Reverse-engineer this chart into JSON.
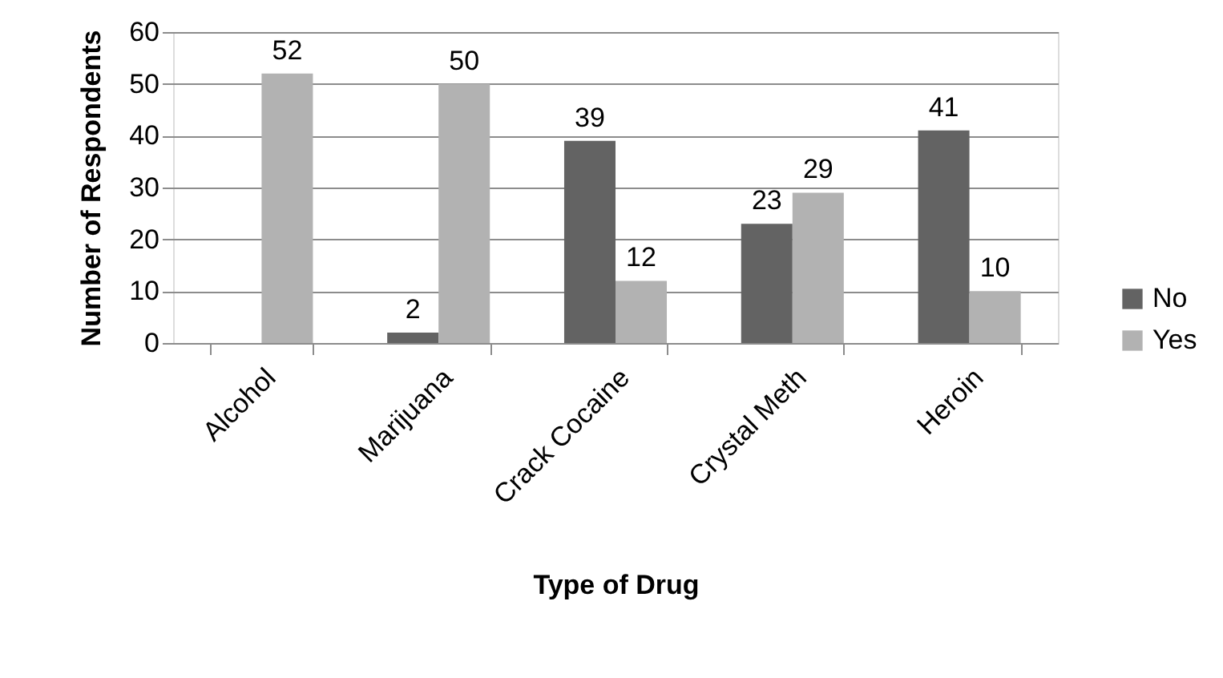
{
  "chart_data": {
    "type": "bar",
    "xlabel": "Type of Drug",
    "ylabel": "Number of Respondents",
    "categories": [
      "Alcohol",
      "Marijuana",
      "Crack Cocaine",
      "Crystal Meth",
      "Heroin"
    ],
    "series": [
      {
        "name": "No",
        "color": "#636363",
        "values": [
          null,
          2,
          39,
          23,
          41
        ]
      },
      {
        "name": "Yes",
        "color": "#b2b2b2",
        "values": [
          52,
          50,
          12,
          29,
          10
        ]
      }
    ],
    "ylim": [
      0,
      60
    ],
    "yticks": [
      0,
      10,
      20,
      30,
      40,
      50,
      60
    ],
    "grid": "y",
    "legend": "right",
    "data_labels": true
  }
}
